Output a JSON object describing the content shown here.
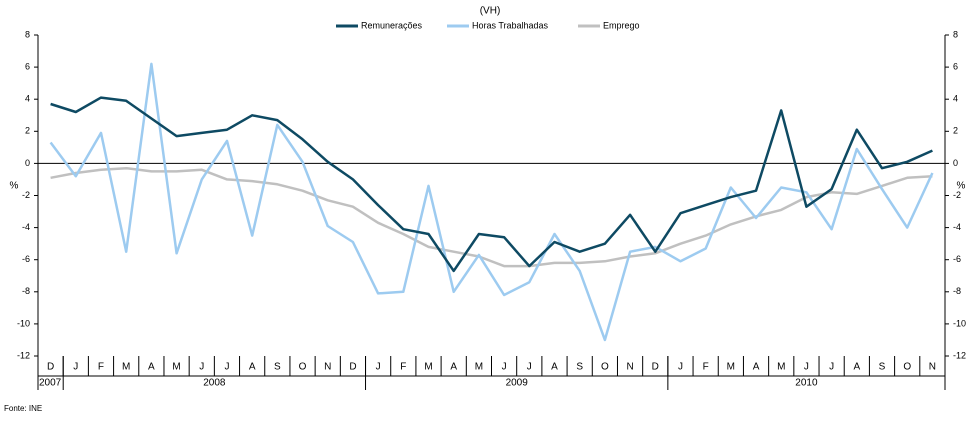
{
  "chart_data": {
    "type": "line",
    "subtitle": "(VH)",
    "y_label": "%",
    "source": "Fonte: INE",
    "categories": [
      "D",
      "J",
      "F",
      "M",
      "A",
      "M",
      "J",
      "J",
      "A",
      "S",
      "O",
      "N",
      "D",
      "J",
      "F",
      "M",
      "A",
      "M",
      "J",
      "J",
      "A",
      "S",
      "O",
      "N",
      "D",
      "J",
      "F",
      "M",
      "A",
      "M",
      "J",
      "J",
      "A",
      "S",
      "O",
      "N"
    ],
    "year_groups": [
      {
        "label": "2007",
        "count": 1
      },
      {
        "label": "2008",
        "count": 12
      },
      {
        "label": "2009",
        "count": 12
      },
      {
        "label": "2010",
        "count": 11
      }
    ],
    "series": [
      {
        "name": "Remunerações",
        "color": "#0e4a63",
        "values": [
          3.7,
          3.2,
          4.1,
          3.9,
          2.8,
          1.7,
          1.9,
          2.1,
          3.0,
          2.7,
          1.5,
          0.1,
          -1.0,
          -2.6,
          -4.1,
          -4.4,
          -6.7,
          -4.4,
          -4.6,
          -6.4,
          -4.9,
          -5.5,
          -5.0,
          -3.2,
          -5.5,
          -3.1,
          -2.6,
          -2.1,
          -1.7,
          3.3,
          -2.7,
          -1.6,
          2.1,
          -0.3,
          0.1,
          0.8
        ]
      },
      {
        "name": "Horas Trabalhadas",
        "color": "#9dcbf0",
        "values": [
          1.3,
          -0.8,
          1.9,
          -5.5,
          6.2,
          -5.6,
          -1.0,
          1.4,
          -4.5,
          2.4,
          0.1,
          -3.9,
          -4.9,
          -8.1,
          -8.0,
          -1.4,
          -8.0,
          -5.7,
          -8.2,
          -7.4,
          -4.4,
          -6.7,
          -11.0,
          -5.5,
          -5.2,
          -6.1,
          -5.3,
          -1.5,
          -3.4,
          -1.5,
          -1.8,
          -4.1,
          0.9,
          -1.6,
          -4.0,
          -0.6
        ]
      },
      {
        "name": "Emprego",
        "color": "#c0c0c0",
        "values": [
          -0.9,
          -0.6,
          -0.4,
          -0.3,
          -0.5,
          -0.5,
          -0.4,
          -1.0,
          -1.1,
          -1.3,
          -1.7,
          -2.3,
          -2.7,
          -3.7,
          -4.4,
          -5.2,
          -5.5,
          -5.8,
          -6.4,
          -6.4,
          -6.2,
          -6.2,
          -6.1,
          -5.8,
          -5.6,
          -5.0,
          -4.5,
          -3.8,
          -3.3,
          -2.9,
          -2.1,
          -1.8,
          -1.9,
          -1.4,
          -0.9,
          -0.8
        ]
      }
    ],
    "ylim": [
      -12,
      8
    ],
    "yticks": [
      -12,
      -10,
      -8,
      -6,
      -4,
      -2,
      0,
      2,
      4,
      6,
      8
    ]
  }
}
